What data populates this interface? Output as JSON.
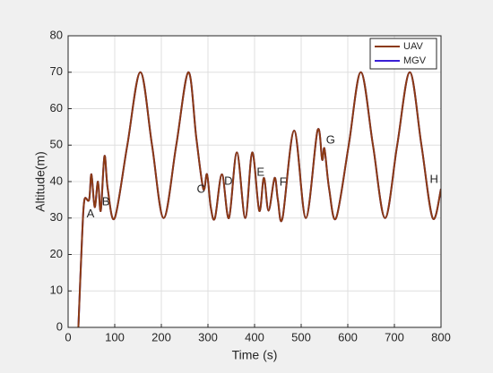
{
  "chart_data": {
    "type": "line",
    "xlabel": "Time (s)",
    "ylabel": "Altitude(m)",
    "x": [
      22,
      30,
      35,
      45,
      50,
      57,
      64,
      70,
      78,
      85,
      100,
      127,
      155,
      180,
      205,
      232,
      258,
      275,
      290,
      298,
      306,
      315,
      330,
      345,
      362,
      380,
      395,
      410,
      420,
      430,
      443,
      450,
      460,
      485,
      510,
      535,
      545,
      550,
      560,
      575,
      602,
      628,
      654,
      680,
      706,
      733,
      758,
      782,
      800
    ],
    "series": [
      {
        "name": "UAV",
        "color": "#8b3a12",
        "values": [
          0,
          25,
          35,
          35,
          42,
          33,
          40,
          32,
          47,
          38,
          30,
          50,
          70,
          50,
          30,
          50,
          70,
          52,
          38,
          42,
          33,
          30,
          42,
          30,
          48,
          30,
          48,
          32,
          41,
          32,
          41,
          35,
          30,
          54,
          30,
          54,
          46,
          49,
          38,
          30,
          50,
          70,
          50,
          30,
          50,
          70,
          50,
          30,
          38
        ]
      },
      {
        "name": "MGV",
        "color": "#3a1fd6",
        "values": [
          0,
          25,
          35,
          35,
          42,
          33,
          40,
          32,
          47,
          38,
          30,
          50,
          70,
          50,
          30,
          50,
          70,
          52,
          38,
          42,
          33,
          30,
          42,
          30,
          48,
          30,
          48,
          32,
          41,
          32,
          41,
          35,
          30,
          54,
          30,
          54,
          46,
          49,
          38,
          30,
          50,
          70,
          50,
          30,
          50,
          70,
          50,
          30,
          38
        ]
      }
    ],
    "annotations": [
      {
        "text": "A",
        "x": 48,
        "y": 31
      },
      {
        "text": "B",
        "x": 81,
        "y": 34.3
      },
      {
        "text": "C",
        "x": 285,
        "y": 37.8
      },
      {
        "text": "D",
        "x": 344,
        "y": 40
      },
      {
        "text": "E",
        "x": 413,
        "y": 42.5
      },
      {
        "text": "F",
        "x": 461,
        "y": 39.8
      },
      {
        "text": "G",
        "x": 563,
        "y": 51.3
      },
      {
        "text": "H",
        "x": 785,
        "y": 40.5
      }
    ],
    "xlim": [
      0,
      800
    ],
    "xticks": [
      0,
      100,
      200,
      300,
      400,
      500,
      600,
      700,
      800
    ],
    "ylim": [
      0,
      80
    ],
    "yticks": [
      0,
      10,
      20,
      30,
      40,
      50,
      60,
      70,
      80
    ],
    "grid": true,
    "legend": "top-right"
  }
}
